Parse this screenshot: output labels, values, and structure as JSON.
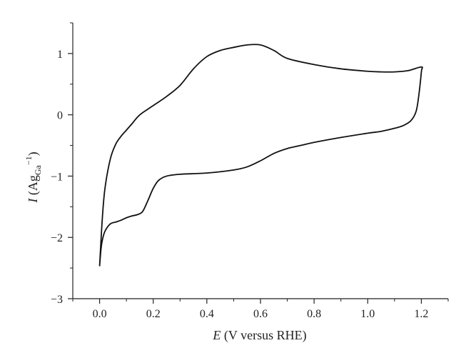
{
  "chart_data": {
    "type": "line",
    "title": "",
    "xlabel": {
      "symbol": "E",
      "text": " (V versus RHE)"
    },
    "ylabel": {
      "symbol": "I",
      "open": " (Ag",
      "subscript": "Ga",
      "superscript": "−1",
      "close": ")"
    },
    "xlim": [
      -0.1,
      1.3
    ],
    "ylim": [
      -3,
      1.5
    ],
    "xticks": [
      0.0,
      0.2,
      0.4,
      0.6,
      0.8,
      1.0,
      1.2
    ],
    "xtick_labels": [
      "0.0",
      "0.2",
      "0.4",
      "0.6",
      "0.8",
      "1.0",
      "1.2"
    ],
    "yticks": [
      -3,
      -2,
      -1,
      0,
      1
    ],
    "ytick_labels": [
      "−3",
      "−2",
      "−1",
      "0",
      "1"
    ],
    "grid": false,
    "line_color": "#111111",
    "series": [
      {
        "x": [
          0.0,
          0.01,
          0.02,
          0.04,
          0.06,
          0.08,
          0.1,
          0.12,
          0.15,
          0.2,
          0.25,
          0.3,
          0.35,
          0.4,
          0.45,
          0.5,
          0.55,
          0.6,
          0.65,
          0.7,
          0.8,
          0.9,
          1.0,
          1.05,
          1.1,
          1.15,
          1.2,
          1.2,
          1.19,
          1.18,
          1.16,
          1.13,
          1.1,
          1.05,
          1.0,
          0.9,
          0.8,
          0.75,
          0.7,
          0.65,
          0.6,
          0.55,
          0.5,
          0.4,
          0.3,
          0.25,
          0.22,
          0.2,
          0.18,
          0.16,
          0.14,
          0.12,
          0.1,
          0.08,
          0.06,
          0.04,
          0.02,
          0.01,
          0.005,
          0.0
        ],
        "y": [
          -2.47,
          -1.7,
          -1.2,
          -0.72,
          -0.48,
          -0.35,
          -0.25,
          -0.15,
          0.0,
          0.15,
          0.3,
          0.48,
          0.75,
          0.95,
          1.05,
          1.1,
          1.14,
          1.14,
          1.05,
          0.92,
          0.82,
          0.75,
          0.71,
          0.7,
          0.7,
          0.72,
          0.78,
          0.7,
          0.3,
          0.05,
          -0.1,
          -0.18,
          -0.22,
          -0.27,
          -0.3,
          -0.37,
          -0.45,
          -0.5,
          -0.55,
          -0.63,
          -0.75,
          -0.85,
          -0.9,
          -0.95,
          -0.97,
          -1.0,
          -1.07,
          -1.2,
          -1.4,
          -1.58,
          -1.63,
          -1.65,
          -1.68,
          -1.72,
          -1.75,
          -1.78,
          -1.9,
          -2.05,
          -2.2,
          -2.47
        ]
      }
    ]
  }
}
